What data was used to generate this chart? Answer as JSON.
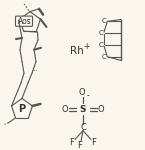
{
  "bg_color": "#faf6ee",
  "line_color": "#555555",
  "text_color": "#333333",
  "fig_width": 1.45,
  "fig_height": 1.5,
  "rh_label": "Rh",
  "rh_charge": "+",
  "p_label": "P",
  "aos_label": "Aos",
  "s_label": "S",
  "o_minus": "-",
  "c_labels": [
    "C",
    "C",
    "C",
    "C"
  ],
  "o_labels": [
    "O",
    "O",
    "O"
  ],
  "f_labels": [
    "F",
    "F",
    "F"
  ],
  "c_cf3_label": "C"
}
